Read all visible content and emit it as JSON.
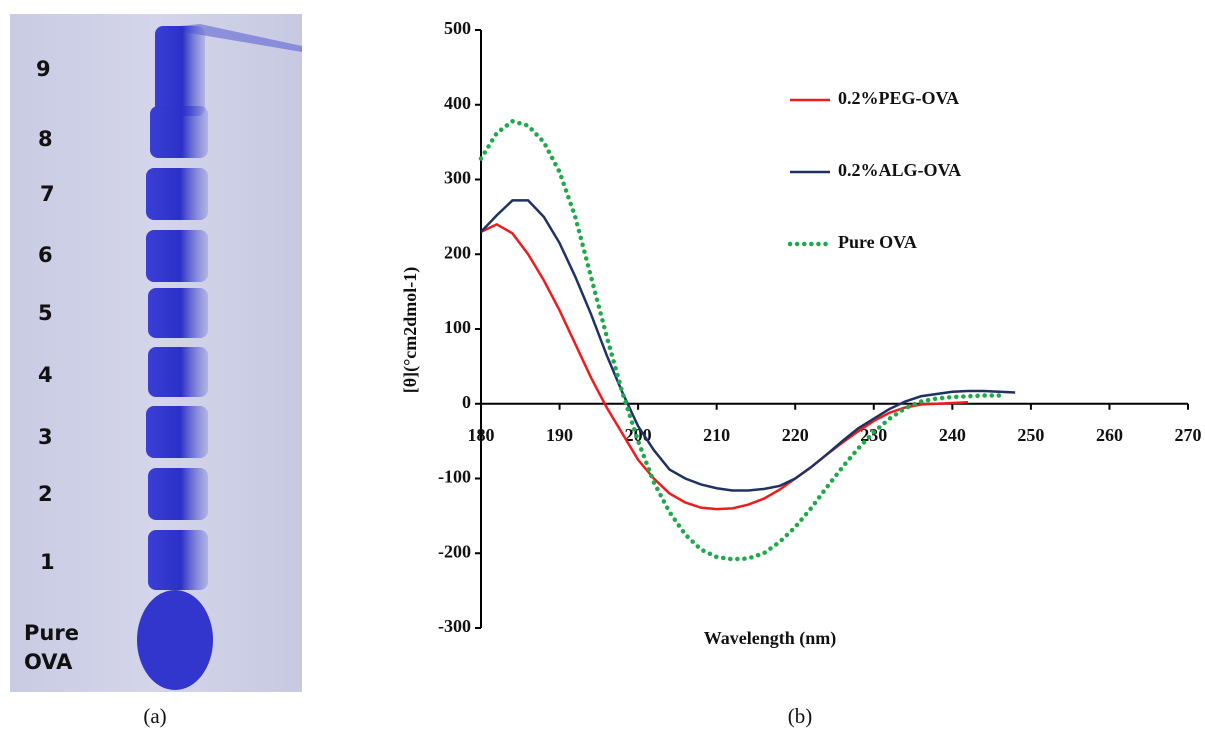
{
  "gel": {
    "lane_labels": [
      "9",
      "8",
      "7",
      "6",
      "5",
      "4",
      "3",
      "2",
      "1"
    ],
    "pure_label": [
      "Pure",
      "OVA"
    ],
    "caption": "(a)"
  },
  "chart_data": {
    "type": "line",
    "caption": "(b)",
    "x_label": "Wavelength (nm)",
    "y_label": "[θ](°cm2dmol-1)",
    "x": [
      180,
      182,
      184,
      186,
      188,
      190,
      192,
      194,
      196,
      198,
      200,
      202,
      204,
      206,
      208,
      210,
      212,
      214,
      216,
      218,
      220,
      222,
      224,
      226,
      228,
      230,
      232,
      234,
      236,
      238,
      240,
      242,
      244,
      246,
      248
    ],
    "series": [
      {
        "name": "0.2%PEG-OVA",
        "color": "#ee1c1c",
        "line_style": "solid",
        "values": [
          230,
          240,
          228,
          200,
          165,
          125,
          80,
          35,
          -5,
          -40,
          -75,
          -100,
          -120,
          -132,
          -139,
          -141,
          -140,
          -135,
          -127,
          -115,
          -100,
          -85,
          -68,
          -52,
          -37,
          -23,
          -12,
          -5,
          -1,
          0,
          1,
          2,
          null,
          null,
          null
        ]
      },
      {
        "name": "0.2%ALG-OVA",
        "color": "#1f3264",
        "line_style": "solid",
        "values": [
          230,
          252,
          272,
          272,
          250,
          215,
          170,
          120,
          65,
          15,
          -30,
          -62,
          -88,
          -100,
          -108,
          -113,
          -116,
          -116,
          -114,
          -110,
          -100,
          -85,
          -68,
          -50,
          -33,
          -20,
          -7,
          3,
          10,
          13,
          16,
          17,
          17,
          16,
          15
        ]
      },
      {
        "name": "Pure OVA",
        "color": "#1faa4a",
        "line_style": "dotted",
        "values": [
          328,
          362,
          378,
          372,
          350,
          310,
          250,
          170,
          90,
          15,
          -50,
          -105,
          -145,
          -175,
          -195,
          -205,
          -208,
          -207,
          -200,
          -185,
          -165,
          -140,
          -112,
          -85,
          -60,
          -38,
          -20,
          -6,
          3,
          7,
          9,
          10,
          11,
          11,
          null
        ]
      }
    ],
    "xlim": [
      180,
      270
    ],
    "xticks": [
      180,
      190,
      200,
      210,
      220,
      230,
      240,
      250,
      260,
      270
    ],
    "ylim": [
      -300,
      500
    ],
    "yticks": [
      -300,
      -200,
      -100,
      0,
      100,
      200,
      300,
      400,
      500
    ]
  }
}
